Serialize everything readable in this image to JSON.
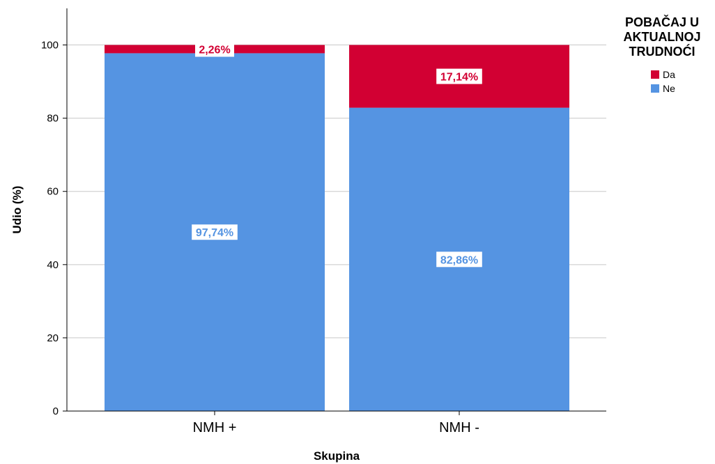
{
  "chart_data": {
    "type": "bar",
    "stacked": true,
    "categories": [
      "NMH +",
      "NMH -"
    ],
    "series": [
      {
        "name": "Ne",
        "values": [
          97.74,
          82.86
        ],
        "color": "#5594E2",
        "labels": [
          "97,74%",
          "82,86%"
        ]
      },
      {
        "name": "Da",
        "values": [
          2.26,
          17.14
        ],
        "color": "#D20033",
        "labels": [
          "2,26%",
          "17,14%"
        ]
      }
    ],
    "xlabel": "Skupina",
    "ylabel": "Udio (%)",
    "ylim": [
      0,
      110
    ],
    "yticks": [
      0,
      20,
      40,
      60,
      80,
      100
    ],
    "grid": true,
    "legend": {
      "title_lines": [
        "POBAČAJ U",
        "AKTUALNOJ",
        "TRUDNOĆI"
      ],
      "items": [
        {
          "label": "Da",
          "color": "#D20033"
        },
        {
          "label": "Ne",
          "color": "#5594E2"
        }
      ],
      "position": "top-right"
    }
  }
}
